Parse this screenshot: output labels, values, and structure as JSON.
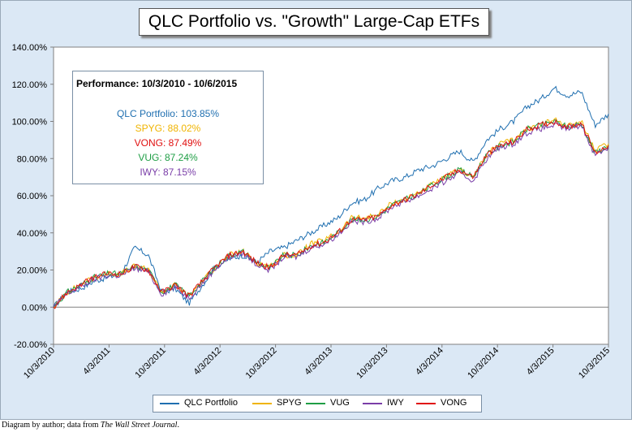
{
  "title": "QLC Portfolio vs. \"Growth\" Large-Cap ETFs",
  "performance": {
    "heading": "Performance: 10/3/2010  -  10/6/2015",
    "entries": [
      {
        "label": "QLC Portfolio: 103.85%",
        "color": "#1f6fb0"
      },
      {
        "label": "SPYG: 88.02%",
        "color": "#f0b400"
      },
      {
        "label": "VONG: 87.49%",
        "color": "#e01010"
      },
      {
        "label": "VUG: 87.24%",
        "color": "#1f9e45"
      },
      {
        "label": "IWY: 87.15%",
        "color": "#7a3ea8"
      }
    ]
  },
  "caption_prefix": "Diagram by author; data from ",
  "caption_source": "The Wall Street Journal",
  "caption_suffix": ".",
  "chart_data": {
    "type": "line",
    "title": "QLC Portfolio vs. \"Growth\" Large-Cap ETFs",
    "xlabel": "",
    "ylabel": "",
    "ylim": [
      -20,
      140
    ],
    "y_ticks": [
      "-20.00%",
      "0.00%",
      "20.00%",
      "40.00%",
      "60.00%",
      "80.00%",
      "100.00%",
      "120.00%",
      "140.00%"
    ],
    "y_tick_values": [
      -20,
      0,
      20,
      40,
      60,
      80,
      100,
      120,
      140
    ],
    "x_ticks": [
      "10/3/2010",
      "4/3/2011",
      "10/3/2011",
      "4/3/2012",
      "10/3/2012",
      "4/3/2013",
      "10/3/2013",
      "4/3/2014",
      "10/3/2014",
      "4/3/2015",
      "10/3/2015"
    ],
    "grid": "horizontal zero line only",
    "legend_position": "bottom",
    "series": [
      {
        "name": "QLC Portfolio",
        "color": "#1f6fb0",
        "values": [
          0,
          8,
          10,
          14,
          16,
          18,
          32,
          28,
          8,
          10,
          2,
          12,
          22,
          26,
          28,
          24,
          30,
          32,
          36,
          40,
          44,
          48,
          56,
          58,
          64,
          68,
          70,
          74,
          76,
          80,
          84,
          78,
          90,
          96,
          100,
          108,
          112,
          118,
          114,
          116,
          98,
          104
        ]
      },
      {
        "name": "SPYG",
        "color": "#f0b400",
        "values": [
          0,
          8,
          12,
          16,
          18,
          18,
          22,
          20,
          8,
          12,
          6,
          14,
          22,
          28,
          30,
          24,
          22,
          28,
          28,
          34,
          36,
          40,
          48,
          48,
          50,
          56,
          58,
          62,
          66,
          70,
          74,
          70,
          82,
          88,
          90,
          96,
          98,
          101,
          98,
          100,
          84,
          88
        ]
      },
      {
        "name": "VUG",
        "color": "#1f9e45",
        "values": [
          0,
          8,
          12,
          16,
          18,
          18,
          22,
          20,
          8,
          12,
          6,
          14,
          22,
          28,
          30,
          24,
          21,
          28,
          28,
          33,
          35,
          40,
          47,
          47,
          49,
          55,
          58,
          61,
          66,
          70,
          74,
          70,
          82,
          87,
          89,
          96,
          98,
          100,
          97,
          99,
          83,
          87
        ]
      },
      {
        "name": "IWY",
        "color": "#7a3ea8",
        "values": [
          0,
          7,
          11,
          15,
          17,
          17,
          21,
          19,
          7,
          11,
          5,
          13,
          21,
          27,
          29,
          23,
          20,
          27,
          27,
          32,
          34,
          39,
          46,
          46,
          48,
          54,
          57,
          60,
          64,
          68,
          72,
          68,
          80,
          86,
          88,
          94,
          96,
          98,
          96,
          98,
          82,
          86
        ]
      },
      {
        "name": "VONG",
        "color": "#e01010",
        "values": [
          0,
          8,
          12,
          16,
          18,
          18,
          22,
          20,
          8,
          12,
          6,
          14,
          22,
          28,
          30,
          24,
          21,
          28,
          28,
          33,
          35,
          40,
          47,
          47,
          49,
          55,
          58,
          61,
          66,
          70,
          74,
          70,
          82,
          87,
          89,
          96,
          98,
          100,
          97,
          99,
          83,
          87
        ]
      }
    ]
  }
}
